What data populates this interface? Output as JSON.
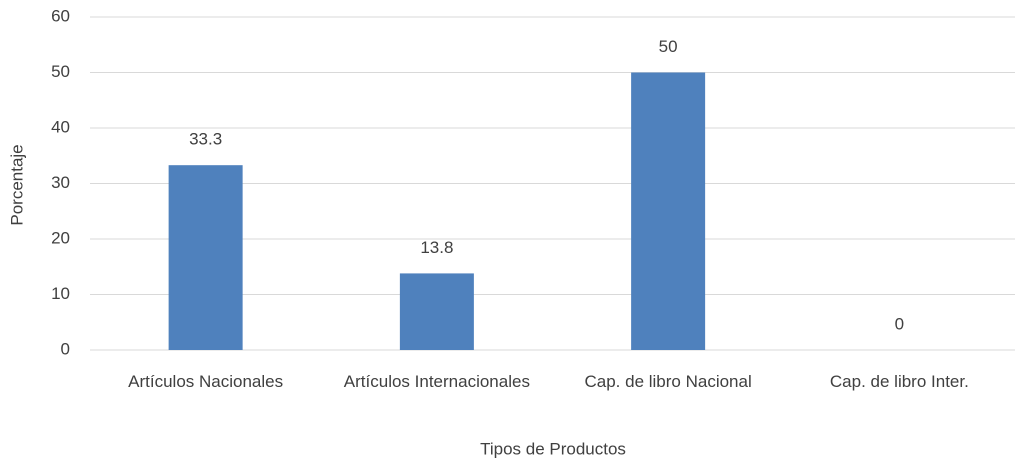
{
  "chart_data": {
    "type": "bar",
    "categories": [
      "Artículos Nacionales",
      "Artículos Internacionales",
      "Cap. de libro Nacional",
      "Cap. de libro Inter."
    ],
    "values": [
      33.3,
      13.8,
      50,
      0
    ],
    "color": "#4f81bd",
    "ylim": [
      0,
      60
    ],
    "yticks": [
      0,
      10,
      20,
      30,
      40,
      50,
      60
    ],
    "grid": true,
    "x_label": "Tipos de Productos",
    "y_label": "Porcentaje"
  }
}
